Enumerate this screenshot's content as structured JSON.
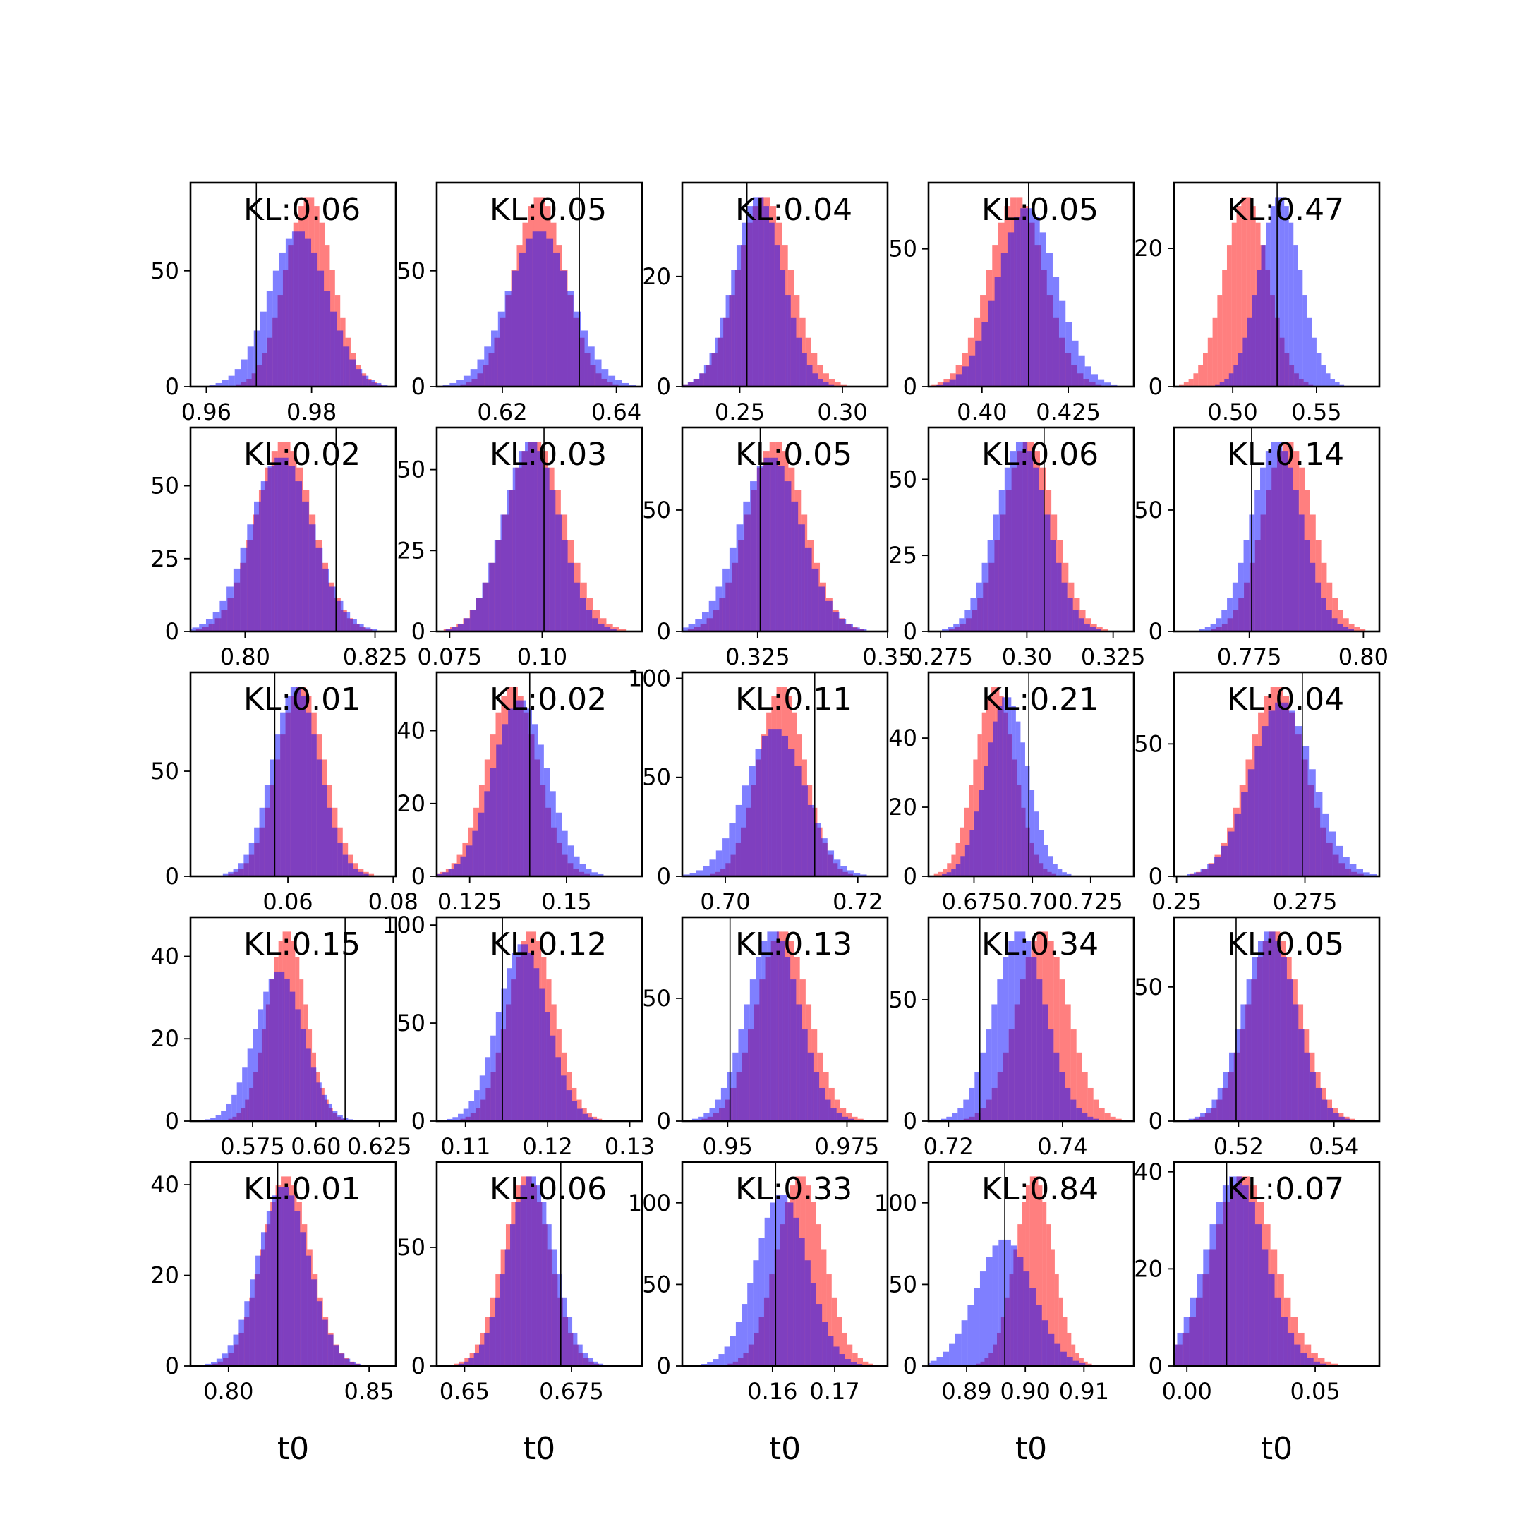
{
  "chart_data": {
    "type": "bar",
    "grid": false,
    "series_colors": {
      "red": "#ff0000",
      "blue": "#0000ff",
      "overlap": "#7f33bf"
    },
    "overlay_alpha": 0.5,
    "bins": 30,
    "xlabel": "t0",
    "panels": [
      {
        "kl": "KL:0.06",
        "xlim": [
          0.957,
          0.996
        ],
        "ymax": 88,
        "xticks": [
          0.96,
          0.98
        ],
        "yticks": [
          0,
          50
        ],
        "truth": 0.9695,
        "red": {
          "mu": 0.9795,
          "sd": 0.0045
        },
        "blue": {
          "mu": 0.9775,
          "sd": 0.0055
        }
      },
      {
        "kl": "KL:0.05",
        "xlim": [
          0.6085,
          0.6445
        ],
        "ymax": 88,
        "xticks": [
          0.62,
          0.64
        ],
        "yticks": [
          0,
          50
        ],
        "truth": 0.6335,
        "red": {
          "mu": 0.6265,
          "sd": 0.0045
        },
        "blue": {
          "mu": 0.6265,
          "sd": 0.0055
        }
      },
      {
        "kl": "KL:0.04",
        "xlim": [
          0.222,
          0.322
        ],
        "ymax": 37,
        "xticks": [
          0.25,
          0.3
        ],
        "yticks": [
          0,
          20
        ],
        "truth": 0.2535,
        "red": {
          "mu": 0.262,
          "sd": 0.013
        },
        "blue": {
          "mu": 0.259,
          "sd": 0.012
        }
      },
      {
        "kl": "KL:0.05",
        "xlim": [
          0.3845,
          0.444
        ],
        "ymax": 74,
        "xticks": [
          0.4,
          0.425
        ],
        "yticks": [
          0,
          50
        ],
        "truth": 0.4135,
        "red": {
          "mu": 0.41,
          "sd": 0.008
        },
        "blue": {
          "mu": 0.413,
          "sd": 0.0085
        }
      },
      {
        "kl": "KL:0.47",
        "xlim": [
          0.465,
          0.5875
        ],
        "ymax": 29.5,
        "xticks": [
          0.5,
          0.55
        ],
        "yticks": [
          0,
          20
        ],
        "truth": 0.5265,
        "red": {
          "mu": 0.508,
          "sd": 0.013
        },
        "blue": {
          "mu": 0.528,
          "sd": 0.0125
        }
      },
      {
        "kl": "KL:0.02",
        "xlim": [
          0.7895,
          0.829
        ],
        "ymax": 70,
        "xticks": [
          0.8,
          0.825
        ],
        "yticks": [
          0,
          25,
          50
        ],
        "truth": 0.8175,
        "red": {
          "mu": 0.8075,
          "sd": 0.0055
        },
        "blue": {
          "mu": 0.807,
          "sd": 0.006
        }
      },
      {
        "kl": "KL:0.03",
        "xlim": [
          0.0715,
          0.127
        ],
        "ymax": 63,
        "xticks": [
          0.075,
          0.1
        ],
        "yticks": [
          0,
          25,
          50
        ],
        "truth": 0.1005,
        "red": {
          "mu": 0.098,
          "sd": 0.008
        },
        "blue": {
          "mu": 0.097,
          "sd": 0.0075
        }
      },
      {
        "kl": "KL:0.05",
        "xlim": [
          0.3105,
          0.35
        ],
        "ymax": 84,
        "xticks": [
          0.325,
          0.35
        ],
        "yticks": [
          0,
          50
        ],
        "truth": 0.3255,
        "red": {
          "mu": 0.3285,
          "sd": 0.0055
        },
        "blue": {
          "mu": 0.3275,
          "sd": 0.006
        }
      },
      {
        "kl": "KL:0.06",
        "xlim": [
          0.2715,
          0.331
        ],
        "ymax": 67,
        "xticks": [
          0.275,
          0.3,
          0.325
        ],
        "yticks": [
          0,
          25,
          50
        ],
        "truth": 0.305,
        "red": {
          "mu": 0.3005,
          "sd": 0.0075
        },
        "blue": {
          "mu": 0.2985,
          "sd": 0.0075
        }
      },
      {
        "kl": "KL:0.14",
        "xlim": [
          0.7585,
          0.8035
        ],
        "ymax": 84,
        "xticks": [
          0.775,
          0.8
        ],
        "yticks": [
          0,
          50
        ],
        "truth": 0.7755,
        "red": {
          "mu": 0.7835,
          "sd": 0.0055
        },
        "blue": {
          "mu": 0.781,
          "sd": 0.0055
        }
      },
      {
        "kl": "KL:0.01",
        "xlim": [
          0.0415,
          0.0805
        ],
        "ymax": 97,
        "xticks": [
          0.06,
          0.08
        ],
        "yticks": [
          0,
          50
        ],
        "truth": 0.0575,
        "red": {
          "mu": 0.0625,
          "sd": 0.0045
        },
        "blue": {
          "mu": 0.0615,
          "sd": 0.0045
        }
      },
      {
        "kl": "KL:0.02",
        "xlim": [
          0.1165,
          0.1695
        ],
        "ymax": 56,
        "xticks": [
          0.125,
          0.15
        ],
        "yticks": [
          0,
          20,
          40
        ],
        "truth": 0.1405,
        "red": {
          "mu": 0.136,
          "sd": 0.0065
        },
        "blue": {
          "mu": 0.138,
          "sd": 0.007
        }
      },
      {
        "kl": "KL:0.11",
        "xlim": [
          0.6935,
          0.7245
        ],
        "ymax": 103,
        "xticks": [
          0.7,
          0.72
        ],
        "yticks": [
          0,
          50,
          100
        ],
        "truth": 0.7135,
        "red": {
          "mu": 0.7085,
          "sd": 0.0035
        },
        "blue": {
          "mu": 0.7075,
          "sd": 0.0045
        }
      },
      {
        "kl": "KL:0.21",
        "xlim": [
          0.6555,
          0.7435
        ],
        "ymax": 59,
        "xticks": [
          0.675,
          0.7,
          0.725
        ],
        "yticks": [
          0,
          20,
          40
        ],
        "truth": 0.6985,
        "red": {
          "mu": 0.684,
          "sd": 0.0085
        },
        "blue": {
          "mu": 0.689,
          "sd": 0.009
        }
      },
      {
        "kl": "KL:0.04",
        "xlim": [
          0.2495,
          0.2895
        ],
        "ymax": 77,
        "xticks": [
          0.25,
          0.275
        ],
        "yticks": [
          0,
          50
        ],
        "truth": 0.2745,
        "red": {
          "mu": 0.2695,
          "sd": 0.0055
        },
        "blue": {
          "mu": 0.2705,
          "sd": 0.006
        }
      },
      {
        "kl": "KL:0.15",
        "xlim": [
          0.5505,
          0.6315
        ],
        "ymax": 49.5,
        "xticks": [
          0.575,
          0.6,
          0.625
        ],
        "yticks": [
          0,
          20,
          40
        ],
        "truth": 0.6115,
        "red": {
          "mu": 0.5885,
          "sd": 0.0075
        },
        "blue": {
          "mu": 0.5855,
          "sd": 0.0095
        }
      },
      {
        "kl": "KL:0.12",
        "xlim": [
          0.1065,
          0.1315
        ],
        "ymax": 104,
        "xticks": [
          0.11,
          0.12,
          0.13
        ],
        "yticks": [
          0,
          50,
          100
        ],
        "truth": 0.1145,
        "red": {
          "mu": 0.118,
          "sd": 0.0028
        },
        "blue": {
          "mu": 0.117,
          "sd": 0.003
        }
      },
      {
        "kl": "KL:0.13",
        "xlim": [
          0.9405,
          0.9835
        ],
        "ymax": 83,
        "xticks": [
          0.95,
          0.975
        ],
        "yticks": [
          0,
          50
        ],
        "truth": 0.9505,
        "red": {
          "mu": 0.9615,
          "sd": 0.0055
        },
        "blue": {
          "mu": 0.9595,
          "sd": 0.0055
        }
      },
      {
        "kl": "KL:0.34",
        "xlim": [
          0.7165,
          0.7525
        ],
        "ymax": 84,
        "xticks": [
          0.72,
          0.74
        ],
        "yticks": [
          0,
          50
        ],
        "truth": 0.7255,
        "red": {
          "mu": 0.7365,
          "sd": 0.0045
        },
        "blue": {
          "mu": 0.7325,
          "sd": 0.0045
        }
      },
      {
        "kl": "KL:0.05",
        "xlim": [
          0.5065,
          0.5495
        ],
        "ymax": 76,
        "xticks": [
          0.52,
          0.54
        ],
        "yticks": [
          0,
          50
        ],
        "truth": 0.5195,
        "red": {
          "mu": 0.5275,
          "sd": 0.0055
        },
        "blue": {
          "mu": 0.5265,
          "sd": 0.0055
        }
      },
      {
        "kl": "KL:0.01",
        "xlim": [
          0.7865,
          0.8595
        ],
        "ymax": 45,
        "xticks": [
          0.8,
          0.85
        ],
        "yticks": [
          0,
          20,
          40
        ],
        "truth": 0.8175,
        "red": {
          "mu": 0.8205,
          "sd": 0.0085
        },
        "blue": {
          "mu": 0.8195,
          "sd": 0.009
        }
      },
      {
        "kl": "KL:0.06",
        "xlim": [
          0.6435,
          0.6915
        ],
        "ymax": 86,
        "xticks": [
          0.65,
          0.675
        ],
        "yticks": [
          0,
          50
        ],
        "truth": 0.6725,
        "red": {
          "mu": 0.6645,
          "sd": 0.0055
        },
        "blue": {
          "mu": 0.6655,
          "sd": 0.0055
        }
      },
      {
        "kl": "KL:0.33",
        "xlim": [
          0.1455,
          0.1785
        ],
        "ymax": 125,
        "xticks": [
          0.16,
          0.17
        ],
        "yticks": [
          0,
          50,
          100
        ],
        "truth": 0.1605,
        "red": {
          "mu": 0.1645,
          "sd": 0.0038
        },
        "blue": {
          "mu": 0.1615,
          "sd": 0.0042
        }
      },
      {
        "kl": "KL:0.84",
        "xlim": [
          0.8835,
          0.9185
        ],
        "ymax": 125,
        "xticks": [
          0.89,
          0.9,
          0.91
        ],
        "yticks": [
          0,
          50,
          100
        ],
        "truth": 0.8965,
        "red": {
          "mu": 0.9015,
          "sd": 0.0032
        },
        "blue": {
          "mu": 0.8965,
          "sd": 0.0048
        }
      },
      {
        "kl": "KL:0.07",
        "xlim": [
          -0.005,
          0.075
        ],
        "ymax": 42,
        "xticks": [
          0.0,
          0.05
        ],
        "yticks": [
          0,
          20,
          40
        ],
        "truth": 0.0155,
        "red": {
          "mu": 0.022,
          "sd": 0.012
        },
        "blue": {
          "mu": 0.019,
          "sd": 0.0115
        }
      }
    ]
  }
}
